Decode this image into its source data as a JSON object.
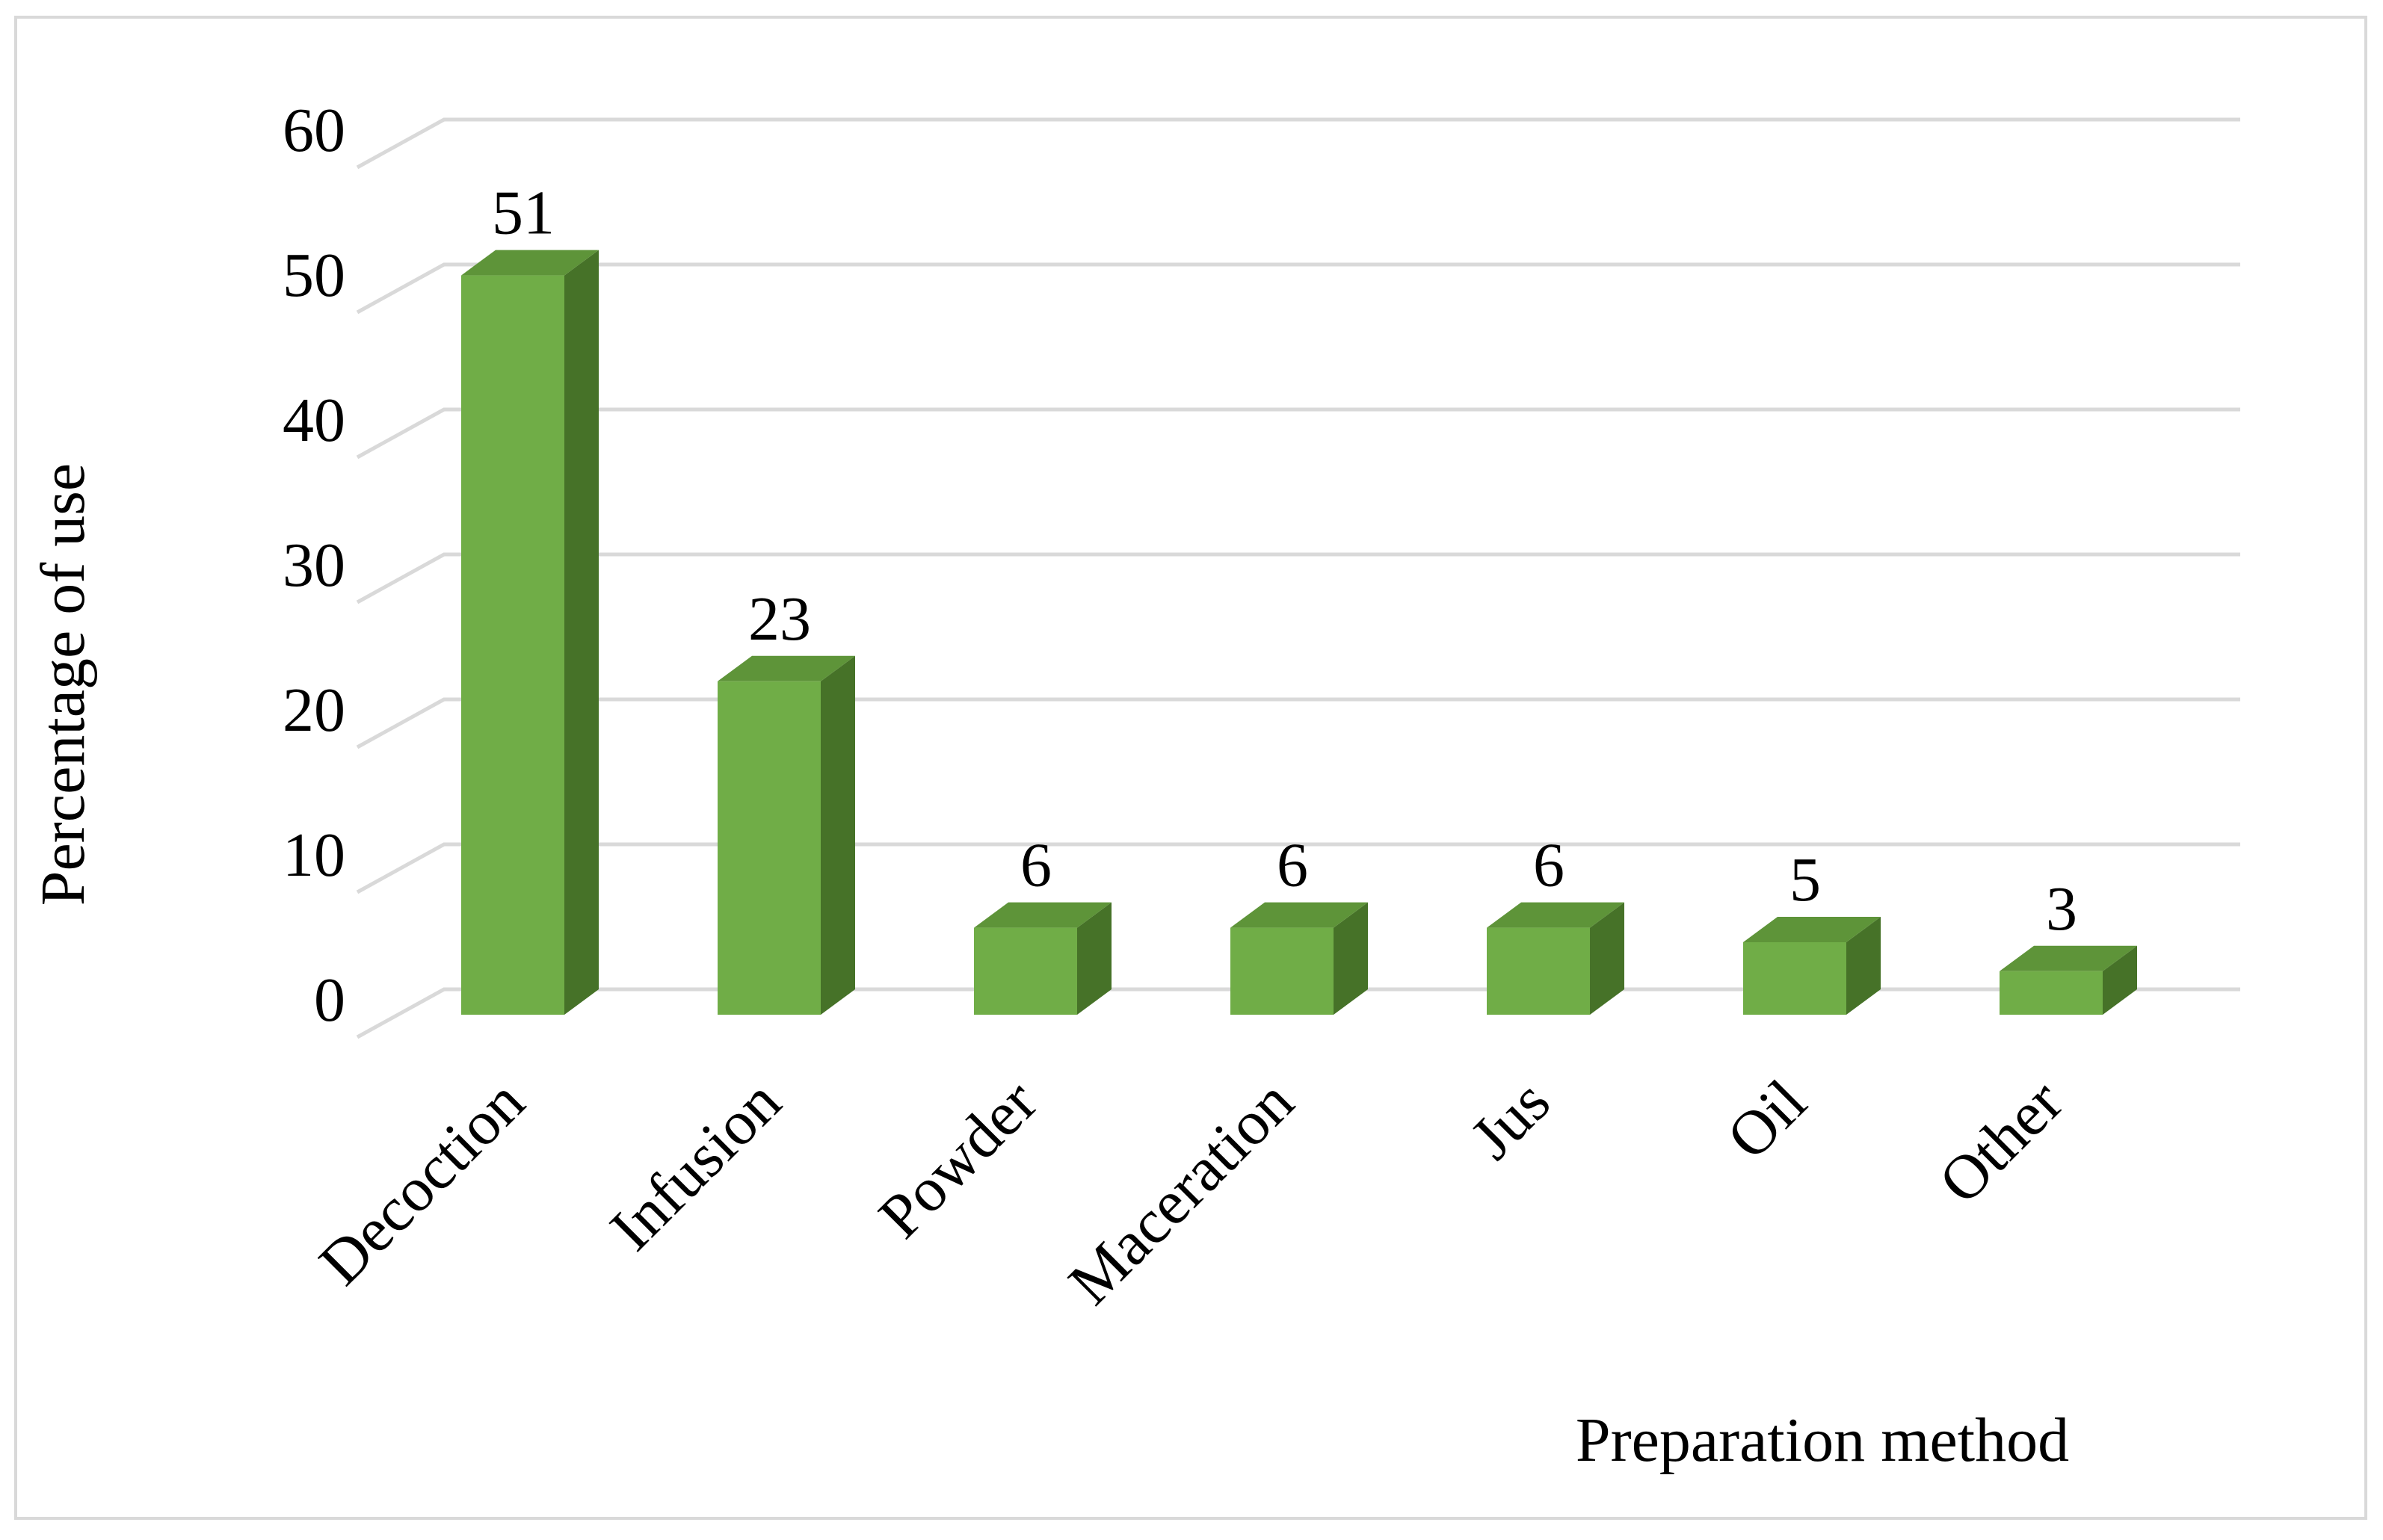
{
  "chart_data": {
    "type": "bar",
    "title": "",
    "xlabel": "Preparation method",
    "ylabel": "Percentage of use",
    "categories": [
      "Decoction",
      "Infusion",
      "Powder",
      "Maceration",
      "Jus",
      "Oil",
      "Other"
    ],
    "values": [
      51,
      23,
      6,
      6,
      6,
      5,
      3
    ],
    "data_labels": [
      "51",
      "23",
      "6",
      "6",
      "6",
      "5",
      "3"
    ],
    "ylim": [
      0,
      60
    ],
    "yticks": [
      "0",
      "10",
      "20",
      "30",
      "40",
      "50",
      "60"
    ],
    "grid": true,
    "legend": "none",
    "style": "3d-column",
    "colors": {
      "bar_front": "#70AD47",
      "bar_top": "#5E9439",
      "bar_side": "#467228",
      "gridline": "#D9D9D9",
      "frame": "#D9D9D9"
    }
  }
}
